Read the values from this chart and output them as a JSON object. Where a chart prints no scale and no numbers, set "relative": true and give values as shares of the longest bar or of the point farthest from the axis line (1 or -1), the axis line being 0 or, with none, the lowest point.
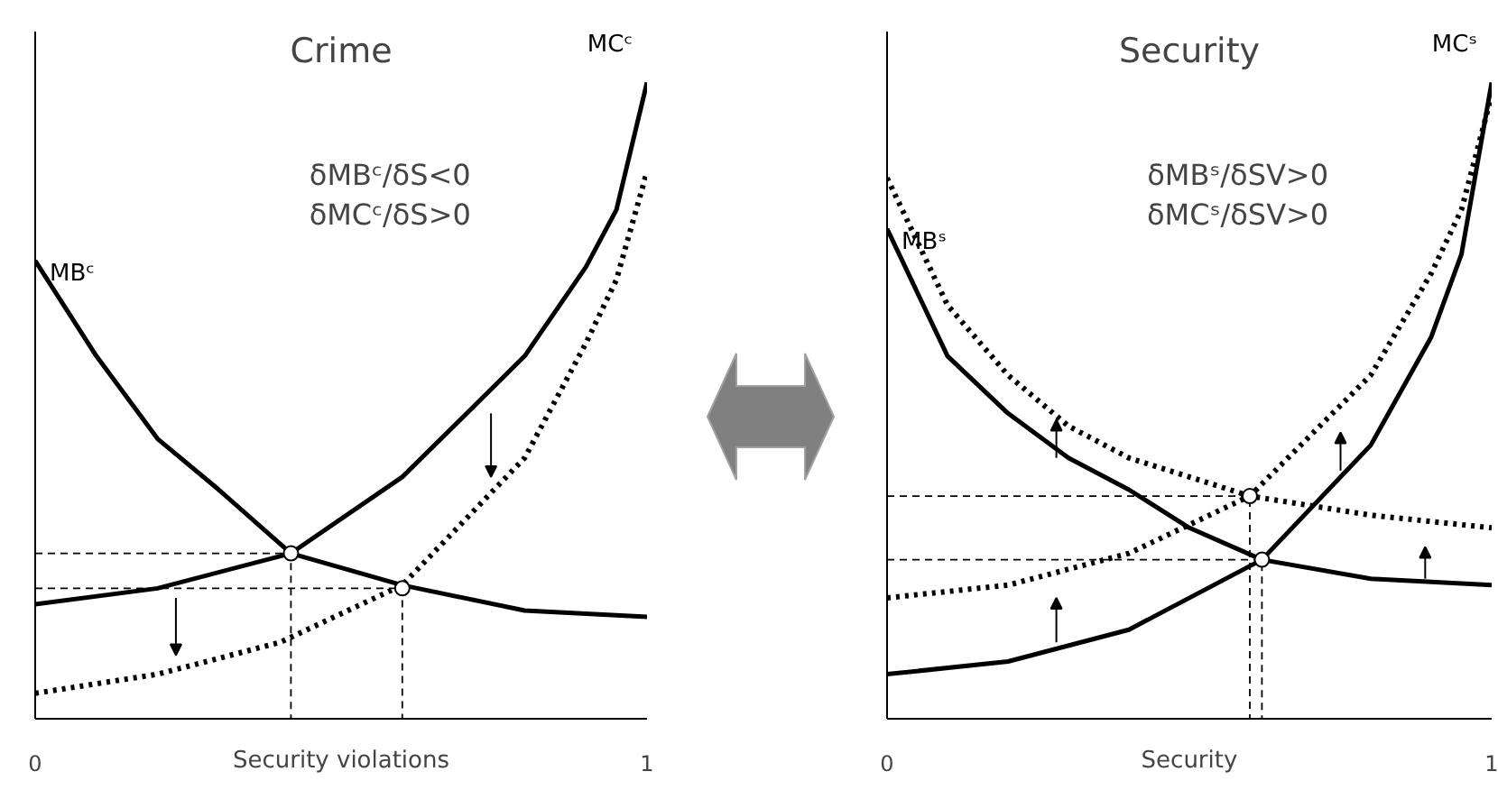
{
  "chart_data": [
    {
      "type": "line",
      "title": "Crime",
      "xlabel": "Security violations",
      "xlim": [
        0,
        1
      ],
      "xticks": [
        0,
        1
      ],
      "relative": true,
      "tick_labels": "x",
      "grid": false,
      "annotations": [
        "δMBᶜ/δS<0",
        "δMCᶜ/δS>0"
      ],
      "series": [
        {
          "name": "MBᶜ",
          "color": "#000000",
          "line_style": "solid",
          "x": [
            0,
            0.1,
            0.2,
            0.3,
            0.418,
            0.6,
            0.8,
            1.0
          ],
          "values": [
            0.72,
            0.57,
            0.44,
            0.36,
            0.26,
            0.21,
            0.17,
            0.16
          ]
        },
        {
          "name": "MCᶜ",
          "color": "#000000",
          "line_style": "solid",
          "x": [
            0,
            0.2,
            0.418,
            0.6,
            0.8,
            0.9,
            0.95,
            1.0
          ],
          "values": [
            0.18,
            0.205,
            0.26,
            0.38,
            0.57,
            0.71,
            0.8,
            1.0
          ]
        },
        {
          "color": "#000000",
          "line_style": "dotted",
          "x": [
            0,
            0.2,
            0.4,
            0.6,
            0.8,
            0.9,
            0.95,
            1.0
          ],
          "values": [
            0.04,
            0.07,
            0.12,
            0.21,
            0.41,
            0.59,
            0.69,
            0.86
          ]
        },
        {
          "color": "#000000",
          "line_style": "dashed",
          "x": [
            0,
            0.418,
            0.418
          ],
          "values": [
            0.26,
            0.26,
            0
          ]
        },
        {
          "color": "#000000",
          "line_style": "dashed",
          "x": [
            0,
            0.6,
            0.6
          ],
          "values": [
            0.205,
            0.205,
            0
          ]
        },
        {
          "type": "scatter",
          "marker": "circle",
          "color": "#000000",
          "x": [
            0.418,
            0.6
          ],
          "values": [
            0.26,
            0.205
          ]
        }
      ]
    },
    {
      "type": "line",
      "title": "Security",
      "xlabel": "Security",
      "xlim": [
        0,
        1
      ],
      "xticks": [
        0,
        1
      ],
      "relative": true,
      "tick_labels": "x",
      "grid": false,
      "annotations": [
        "δMBˢ/δSV>0",
        "δMCˢ/δSV>0"
      ],
      "series": [
        {
          "name": "MBˢ",
          "color": "#000000",
          "line_style": "solid",
          "x": [
            0,
            0.1,
            0.2,
            0.3,
            0.4,
            0.5,
            0.62,
            0.8,
            1.0
          ],
          "values": [
            0.77,
            0.57,
            0.48,
            0.41,
            0.36,
            0.3,
            0.25,
            0.22,
            0.21
          ]
        },
        {
          "color": "#000000",
          "line_style": "dotted",
          "x": [
            0,
            0.1,
            0.2,
            0.3,
            0.4,
            0.6,
            0.8,
            1.0
          ],
          "values": [
            0.85,
            0.65,
            0.54,
            0.46,
            0.41,
            0.35,
            0.32,
            0.3
          ]
        },
        {
          "name": "MCˢ",
          "color": "#000000",
          "line_style": "solid",
          "x": [
            0,
            0.2,
            0.4,
            0.62,
            0.8,
            0.9,
            0.95,
            1.0
          ],
          "values": [
            0.07,
            0.09,
            0.14,
            0.25,
            0.43,
            0.6,
            0.73,
            1.0
          ]
        },
        {
          "color": "#000000",
          "line_style": "dotted",
          "x": [
            0,
            0.2,
            0.4,
            0.6,
            0.8,
            0.9,
            0.95,
            1.0
          ],
          "values": [
            0.19,
            0.21,
            0.26,
            0.35,
            0.54,
            0.7,
            0.8,
            0.98
          ]
        },
        {
          "color": "#000000",
          "line_style": "dashed",
          "x": [
            0,
            0.6,
            0.6
          ],
          "values": [
            0.35,
            0.35,
            0
          ]
        },
        {
          "color": "#000000",
          "line_style": "dashed",
          "x": [
            0,
            0.62,
            0.62
          ],
          "values": [
            0.25,
            0.25,
            0
          ]
        },
        {
          "type": "scatter",
          "marker": "circle",
          "color": "#000000",
          "x": [
            0.6,
            0.62
          ],
          "values": [
            0.35,
            0.25
          ]
        }
      ]
    }
  ]
}
